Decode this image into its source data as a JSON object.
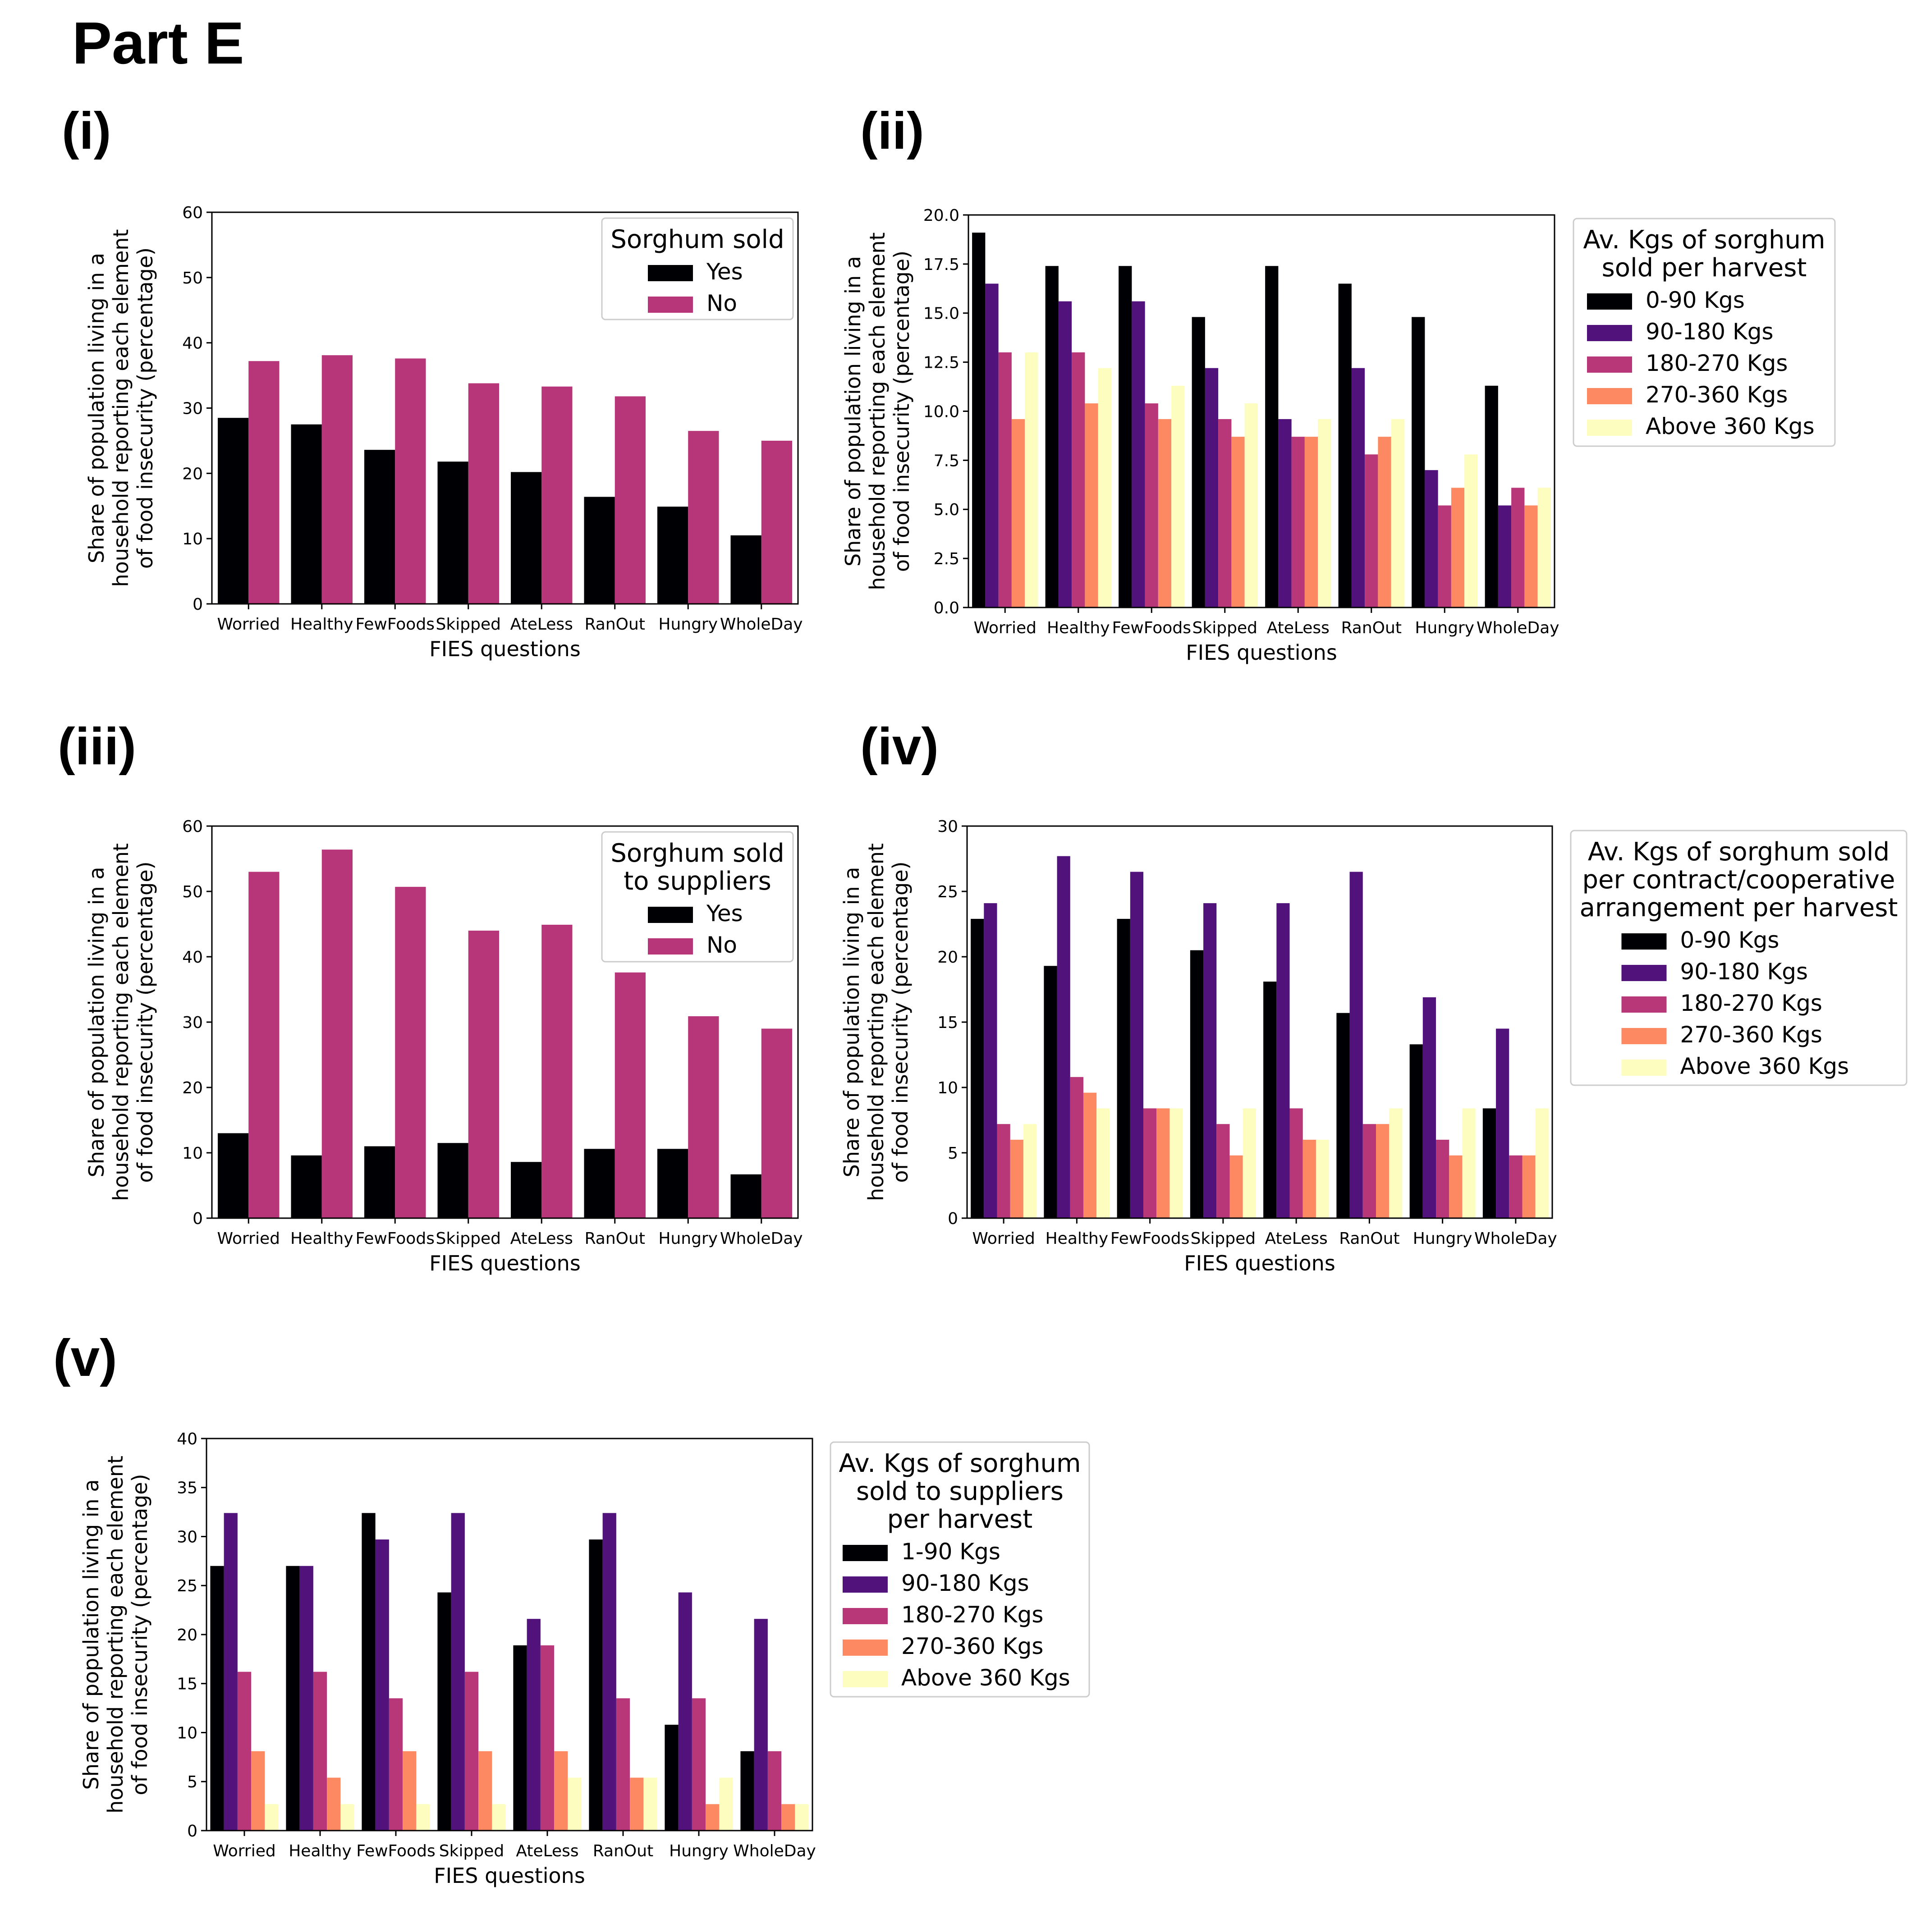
{
  "page_title": "Part E",
  "panel_labels": [
    "(i)",
    "(ii)",
    "(iii)",
    "(iv)",
    "(v)"
  ],
  "chart_data": [
    {
      "id": "i",
      "type": "bar",
      "xlabel": "FIES questions",
      "ylabel": [
        "Share of population living in a",
        "household reporting each element",
        "of food insecurity (percentage)"
      ],
      "categories": [
        "Worried",
        "Healthy",
        "FewFoods",
        "Skipped",
        "AteLess",
        "RanOut",
        "Hungry",
        "WholeDay"
      ],
      "ylim": [
        0,
        60
      ],
      "yticks": [
        0,
        10,
        20,
        30,
        40,
        50,
        60
      ],
      "legend": {
        "title": [
          "Sorghum sold"
        ],
        "placement": "upper right inside"
      },
      "series": [
        {
          "name": "Yes",
          "color": "#000004",
          "values": [
            28.5,
            27.5,
            23.6,
            21.8,
            20.2,
            16.4,
            14.9,
            10.5
          ]
        },
        {
          "name": "No",
          "color": "#b63679",
          "values": [
            37.2,
            38.1,
            37.6,
            33.8,
            33.3,
            31.8,
            26.5,
            25.0
          ]
        }
      ]
    },
    {
      "id": "ii",
      "type": "bar",
      "xlabel": "FIES questions",
      "ylabel": [
        "Share of population living in a",
        "household reporting each element",
        "of food insecurity (percentage)"
      ],
      "categories": [
        "Worried",
        "Healthy",
        "FewFoods",
        "Skipped",
        "AteLess",
        "RanOut",
        "Hungry",
        "WholeDay"
      ],
      "ylim": [
        0,
        20
      ],
      "yticks": [
        "0.0",
        "2.5",
        "5.0",
        "7.5",
        "10.0",
        "12.5",
        "15.0",
        "17.5",
        "20.0"
      ],
      "legend": {
        "title": [
          "Av. Kgs of sorghum",
          " sold per harvest"
        ],
        "placement": "outside right"
      },
      "series": [
        {
          "name": "0-90 Kgs",
          "color": "#000004",
          "values": [
            19.1,
            17.4,
            17.4,
            14.8,
            17.4,
            16.5,
            14.8,
            11.3
          ]
        },
        {
          "name": "90-180 Kgs",
          "color": "#51127c",
          "values": [
            16.5,
            15.6,
            15.6,
            12.2,
            9.6,
            12.2,
            7.0,
            5.2
          ]
        },
        {
          "name": "180-270 Kgs",
          "color": "#b73779",
          "values": [
            13.0,
            13.0,
            10.4,
            9.6,
            8.7,
            7.8,
            5.2,
            6.1
          ]
        },
        {
          "name": "270-360 Kgs",
          "color": "#fc8961",
          "values": [
            9.6,
            10.4,
            9.6,
            8.7,
            8.7,
            8.7,
            6.1,
            5.2
          ]
        },
        {
          "name": "Above 360 Kgs",
          "color": "#fcfdbf",
          "values": [
            13.0,
            12.2,
            11.3,
            10.4,
            9.6,
            9.6,
            7.8,
            6.1
          ]
        }
      ]
    },
    {
      "id": "iii",
      "type": "bar",
      "xlabel": "FIES questions",
      "ylabel": [
        "Share of population living in a",
        "household reporting each element",
        "of food insecurity (percentage)"
      ],
      "categories": [
        "Worried",
        "Healthy",
        "FewFoods",
        "Skipped",
        "AteLess",
        "RanOut",
        "Hungry",
        "WholeDay"
      ],
      "ylim": [
        0,
        60
      ],
      "yticks": [
        0,
        10,
        20,
        30,
        40,
        50,
        60
      ],
      "legend": {
        "title": [
          "Sorghum sold",
          " to suppliers"
        ],
        "placement": "upper right inside"
      },
      "series": [
        {
          "name": "Yes",
          "color": "#000004",
          "values": [
            13.0,
            9.6,
            11.0,
            11.5,
            8.6,
            10.6,
            10.6,
            6.7
          ]
        },
        {
          "name": "No",
          "color": "#b63679",
          "values": [
            53.0,
            56.4,
            50.7,
            44.0,
            44.9,
            37.6,
            30.9,
            29.0
          ]
        }
      ]
    },
    {
      "id": "iv",
      "type": "bar",
      "xlabel": "FIES questions",
      "ylabel": [
        "Share of population living in a",
        "household reporting each element",
        "of food insecurity (percentage)"
      ],
      "categories": [
        "Worried",
        "Healthy",
        "FewFoods",
        "Skipped",
        "AteLess",
        "RanOut",
        "Hungry",
        "WholeDay"
      ],
      "ylim": [
        0,
        30
      ],
      "yticks": [
        0,
        5,
        10,
        15,
        20,
        25,
        30
      ],
      "legend": {
        "title": [
          "Av. Kgs of sorghum sold",
          "per contract/cooperative",
          "arrangement per harvest"
        ],
        "placement": "outside right"
      },
      "series": [
        {
          "name": "0-90 Kgs",
          "color": "#000004",
          "values": [
            22.9,
            19.3,
            22.9,
            20.5,
            18.1,
            15.7,
            13.3,
            8.4
          ]
        },
        {
          "name": "90-180 Kgs",
          "color": "#51127c",
          "values": [
            24.1,
            27.7,
            26.5,
            24.1,
            24.1,
            26.5,
            16.9,
            14.5
          ]
        },
        {
          "name": "180-270 Kgs",
          "color": "#b73779",
          "values": [
            7.2,
            10.8,
            8.4,
            7.2,
            8.4,
            7.2,
            6.0,
            4.8
          ]
        },
        {
          "name": "270-360 Kgs",
          "color": "#fc8961",
          "values": [
            6.0,
            9.6,
            8.4,
            4.8,
            6.0,
            7.2,
            4.8,
            4.8
          ]
        },
        {
          "name": "Above 360 Kgs",
          "color": "#fcfdbf",
          "values": [
            7.2,
            8.4,
            8.4,
            8.4,
            6.0,
            8.4,
            8.4,
            8.4
          ]
        }
      ]
    },
    {
      "id": "v",
      "type": "bar",
      "xlabel": "FIES questions",
      "ylabel": [
        "Share of population living in a",
        "household reporting each element",
        "of food insecurity (percentage)"
      ],
      "categories": [
        "Worried",
        "Healthy",
        "FewFoods",
        "Skipped",
        "AteLess",
        "RanOut",
        "Hungry",
        "WholeDay"
      ],
      "ylim": [
        0,
        40
      ],
      "yticks": [
        0,
        5,
        10,
        15,
        20,
        25,
        30,
        35,
        40
      ],
      "legend": {
        "title": [
          "Av. Kgs of sorghum",
          " sold to suppliers",
          " per harvest"
        ],
        "placement": "outside right"
      },
      "series": [
        {
          "name": "1-90 Kgs",
          "color": "#000004",
          "values": [
            27.0,
            27.0,
            32.4,
            24.3,
            18.9,
            29.7,
            10.8,
            8.1
          ]
        },
        {
          "name": "90-180 Kgs",
          "color": "#51127c",
          "values": [
            32.4,
            27.0,
            29.7,
            32.4,
            21.6,
            32.4,
            24.3,
            21.6
          ]
        },
        {
          "name": "180-270 Kgs",
          "color": "#b73779",
          "values": [
            16.2,
            16.2,
            13.5,
            16.2,
            18.9,
            13.5,
            13.5,
            8.1
          ]
        },
        {
          "name": "270-360 Kgs",
          "color": "#fc8961",
          "values": [
            8.1,
            5.4,
            8.1,
            8.1,
            8.1,
            5.4,
            2.7,
            2.7
          ]
        },
        {
          "name": "Above 360 Kgs",
          "color": "#fcfdbf",
          "values": [
            2.7,
            2.7,
            2.7,
            2.7,
            5.4,
            5.4,
            5.4,
            2.7
          ]
        }
      ]
    }
  ]
}
